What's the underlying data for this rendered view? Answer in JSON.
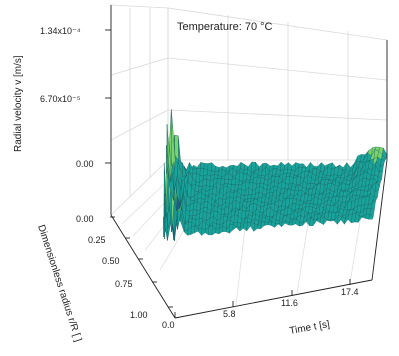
{
  "chart_data": {
    "type": "surface",
    "title": "Temperature: 70 °C",
    "xlabel": "Time t [s]",
    "ylabel": "Dimensionless radius r/R [ ]",
    "zlabel": "Radial velocity v [m/s]",
    "x_ticks": [
      "0.0",
      "5.8",
      "11.6",
      "17.4"
    ],
    "y_ticks": [
      "0.00",
      "0.25",
      "0.50",
      "0.75",
      "1.00"
    ],
    "z_ticks": [
      "0.00",
      "6.70x10⁻⁵",
      "1.34x10⁻⁴"
    ],
    "x_range": [
      0,
      20
    ],
    "y_range": [
      0,
      1
    ],
    "z_range": [
      -5e-05,
      0.000134
    ],
    "grid": true,
    "colors": {
      "surface_high": "#7bd36b",
      "surface_mid": "#1aa39a",
      "surface_low": "#1b5f8f",
      "grid": "#d9d9d9",
      "axis": "#222222"
    }
  }
}
